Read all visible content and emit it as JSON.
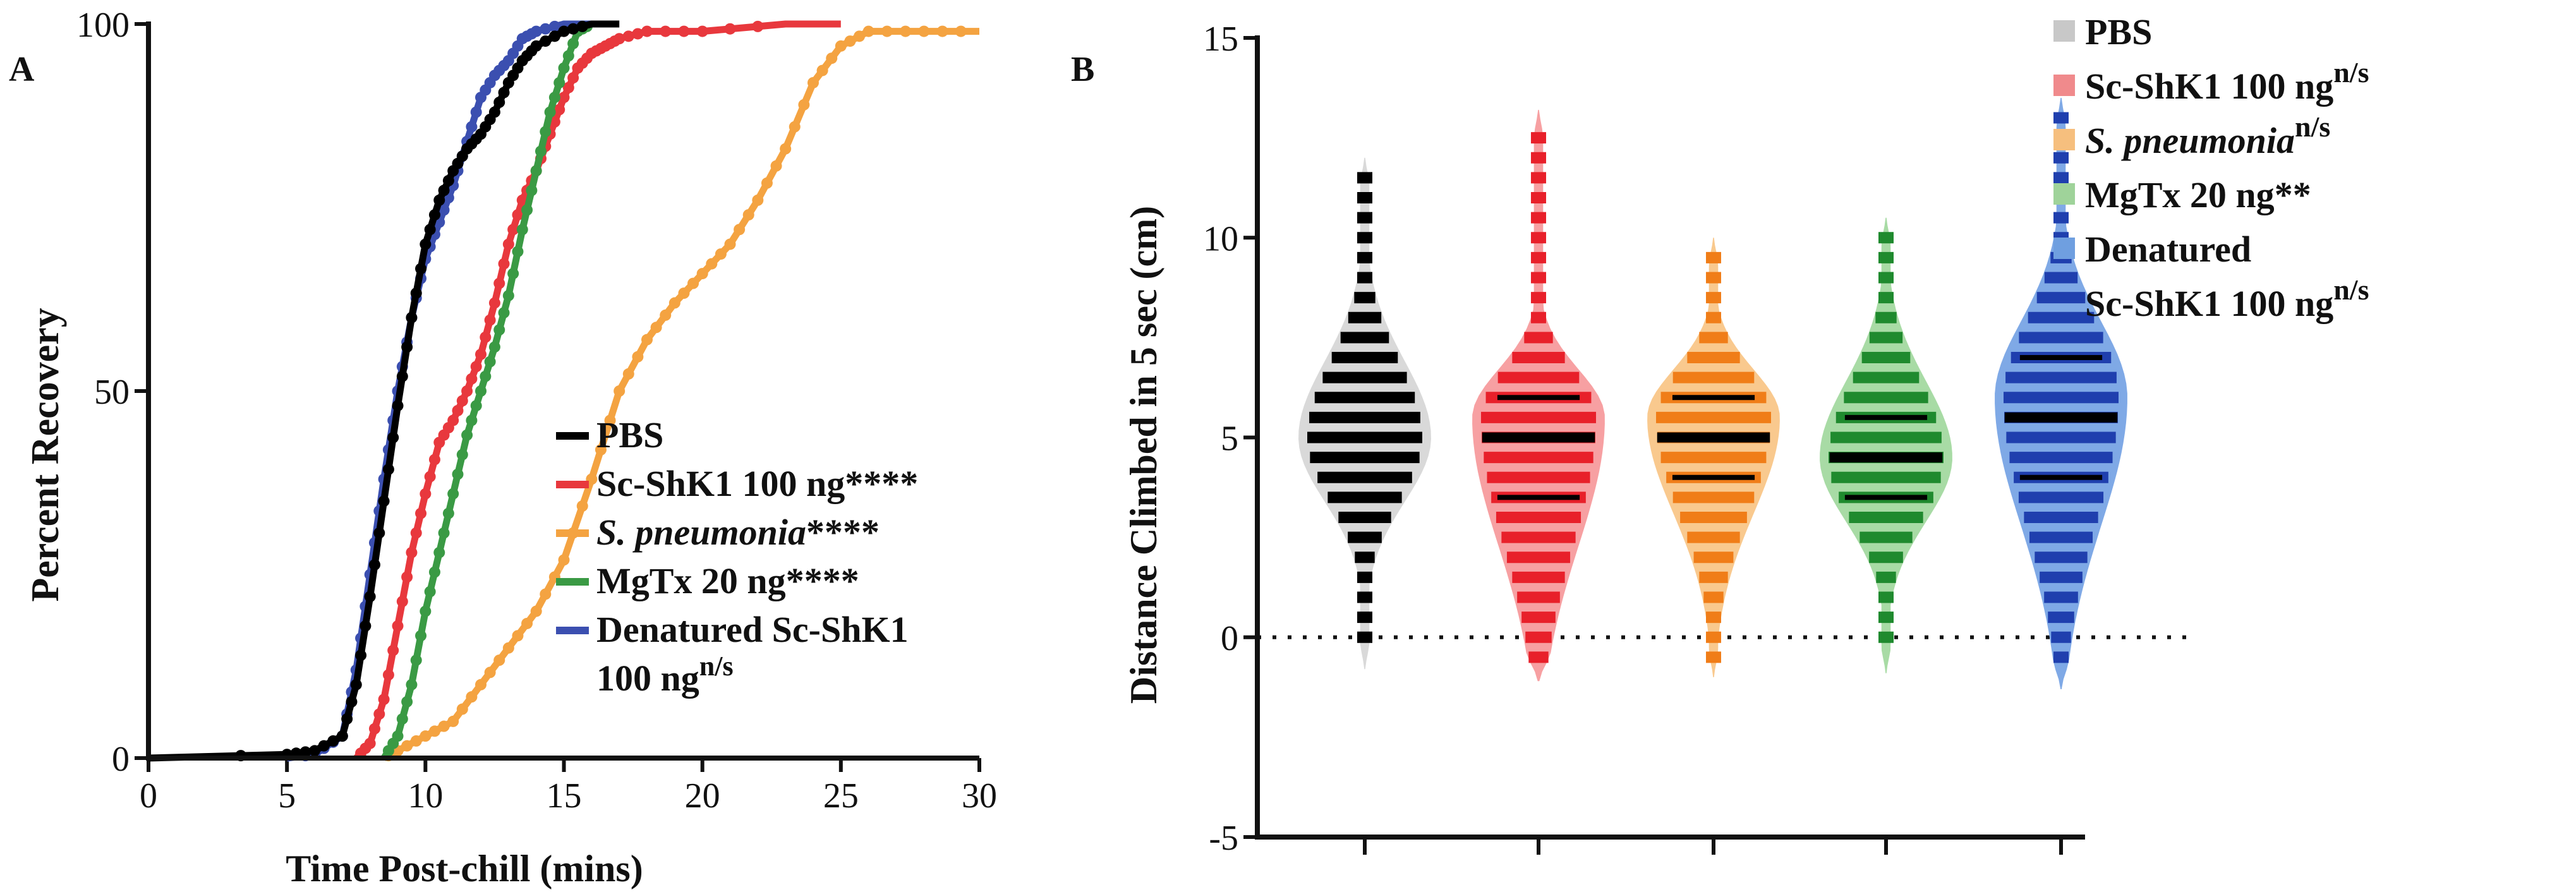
{
  "chart_data": [
    {
      "panel": "A",
      "type": "line",
      "subtype": "cumulative-recovery",
      "title": "",
      "xlabel": "Time Post-chill (mins)",
      "ylabel": "Percent Recovery",
      "xlim": [
        0,
        30
      ],
      "ylim": [
        0,
        100
      ],
      "xticks": [
        "0",
        "5",
        "10",
        "15",
        "20",
        "25",
        "30"
      ],
      "yticks": [
        "0",
        "50",
        "100"
      ],
      "legend": {
        "placement": "lower-right",
        "entries": [
          {
            "name": "PBS",
            "suffix": "",
            "superscript": "",
            "italic": false,
            "color": "#000000"
          },
          {
            "name": "Sc-ShK1 100 ng",
            "suffix": "****",
            "superscript": "",
            "italic": false,
            "color": "#e8383d"
          },
          {
            "name": "S. pneumonia",
            "suffix": "****",
            "superscript": "",
            "italic": true,
            "color": "#f4a341"
          },
          {
            "name": "MgTx 20 ng",
            "suffix": "****",
            "superscript": "",
            "italic": false,
            "color": "#3a9a44"
          },
          {
            "name": "Denatured Sc-ShK1",
            "name2": "100 ng",
            "suffix": "",
            "superscript": "n/s",
            "italic": false,
            "color": "#3b4fb0"
          }
        ]
      },
      "series": [
        {
          "name": "PBS",
          "color": "#000000",
          "x": [
            0,
            5,
            6,
            7,
            7.5,
            8,
            8.5,
            9,
            9.5,
            10,
            10.5,
            11,
            11.5,
            12,
            12.5,
            13,
            13.5,
            14,
            15,
            16,
            17
          ],
          "y": [
            0,
            0.5,
            1,
            3,
            10,
            22,
            35,
            48,
            60,
            70,
            76,
            80,
            83,
            85,
            88,
            92,
            95,
            97,
            99,
            100,
            100
          ]
        },
        {
          "name": "Sc-ShK1 100 ng",
          "color": "#e8383d",
          "x": [
            7.5,
            8,
            8.5,
            9,
            9.5,
            10,
            10.5,
            11,
            11.5,
            12,
            12.5,
            13,
            13.5,
            14,
            14.5,
            15,
            15.5,
            16,
            16.5,
            17,
            18,
            20,
            23,
            25
          ],
          "y": [
            0,
            2,
            8,
            18,
            28,
            36,
            43,
            46,
            50,
            55,
            62,
            70,
            76,
            80,
            85,
            90,
            94,
            96,
            97,
            98,
            99,
            99,
            100,
            100
          ]
        },
        {
          "name": "S. pneumonia",
          "color": "#f4a341",
          "x": [
            8.5,
            9,
            10,
            11,
            12,
            13,
            14,
            15,
            16,
            17,
            18,
            19,
            20,
            21,
            22,
            23,
            24,
            25,
            26,
            28,
            30
          ],
          "y": [
            0,
            1,
            3,
            5,
            10,
            15,
            20,
            27,
            38,
            50,
            57,
            62,
            66,
            70,
            76,
            83,
            92,
            97,
            99,
            99,
            99
          ]
        },
        {
          "name": "MgTx 20 ng",
          "color": "#3a9a44",
          "x": [
            8.5,
            9,
            9.5,
            10,
            10.5,
            11,
            11.5,
            12,
            12.5,
            13,
            13.5,
            14,
            14.5,
            15,
            15.5,
            16
          ],
          "y": [
            0,
            3,
            10,
            20,
            28,
            36,
            44,
            50,
            56,
            63,
            72,
            80,
            88,
            94,
            99,
            100
          ]
        },
        {
          "name": "Denatured Sc-ShK1 100 ng",
          "color": "#3b4fb0",
          "x": [
            5,
            6,
            7,
            7.5,
            8,
            8.5,
            9,
            9.5,
            10,
            10.5,
            11,
            11.5,
            12,
            12.5,
            13,
            13.5,
            14,
            15,
            16
          ],
          "y": [
            0,
            0.5,
            3,
            12,
            25,
            38,
            50,
            60,
            68,
            73,
            78,
            84,
            90,
            93,
            95,
            98,
            99,
            100,
            100
          ]
        }
      ]
    },
    {
      "panel": "B",
      "type": "violin",
      "title": "",
      "xlabel": "",
      "ylabel": "Distance Climbed in 5 sec (cm)",
      "ylim": [
        -5,
        15
      ],
      "yticks": [
        "-5",
        "0",
        "5",
        "10",
        "15"
      ],
      "reference_line": 0,
      "legend": {
        "placement": "top-right",
        "entries": [
          {
            "name": "PBS",
            "suffix": "",
            "superscript": "",
            "italic": false,
            "color": "#c8c8c8"
          },
          {
            "name": "Sc-ShK1 100 ng",
            "suffix": "",
            "superscript": "n/s",
            "italic": false,
            "color": "#f08a8c"
          },
          {
            "name": "S. pneumonia",
            "suffix": "",
            "superscript": "n/s",
            "italic": true,
            "color": "#f6bf7e"
          },
          {
            "name": "MgTx 20 ng",
            "suffix": "**",
            "superscript": "",
            "italic": false,
            "color": "#9fd39a"
          },
          {
            "name": "Denatured",
            "name2": "Sc-ShK1 100 ng",
            "suffix": "",
            "superscript": "n/s",
            "italic": false,
            "color": "#6f9fe0"
          }
        ]
      },
      "groups": [
        {
          "name": "PBS",
          "fill": "#d9d9d9",
          "points": "#000000",
          "min": -0.8,
          "max": 12,
          "q1": 4,
          "median": 5,
          "q3": 6,
          "mode": 5
        },
        {
          "name": "Sc-ShK1 100 ng",
          "fill": "#f7a0a2",
          "points": "#e8202a",
          "min": -1.1,
          "max": 13.2,
          "q1": 3.5,
          "median": 5,
          "q3": 6,
          "mode": 5.5
        },
        {
          "name": "S. pneumonia",
          "fill": "#f9c98e",
          "points": "#f07d18",
          "min": -1,
          "max": 10,
          "q1": 4,
          "median": 5,
          "q3": 6,
          "mode": 5.5
        },
        {
          "name": "MgTx 20 ng",
          "fill": "#a8dba5",
          "points": "#1f8a2e",
          "min": -0.9,
          "max": 10.5,
          "q1": 3.5,
          "median": 4.5,
          "q3": 5.5,
          "mode": 4.5
        },
        {
          "name": "Denatured Sc-ShK1 100 ng",
          "fill": "#7fa9e6",
          "points": "#1f3fae",
          "min": -1.3,
          "max": 13.5,
          "q1": 4,
          "median": 5.5,
          "q3": 7,
          "mode": 6
        }
      ]
    }
  ]
}
